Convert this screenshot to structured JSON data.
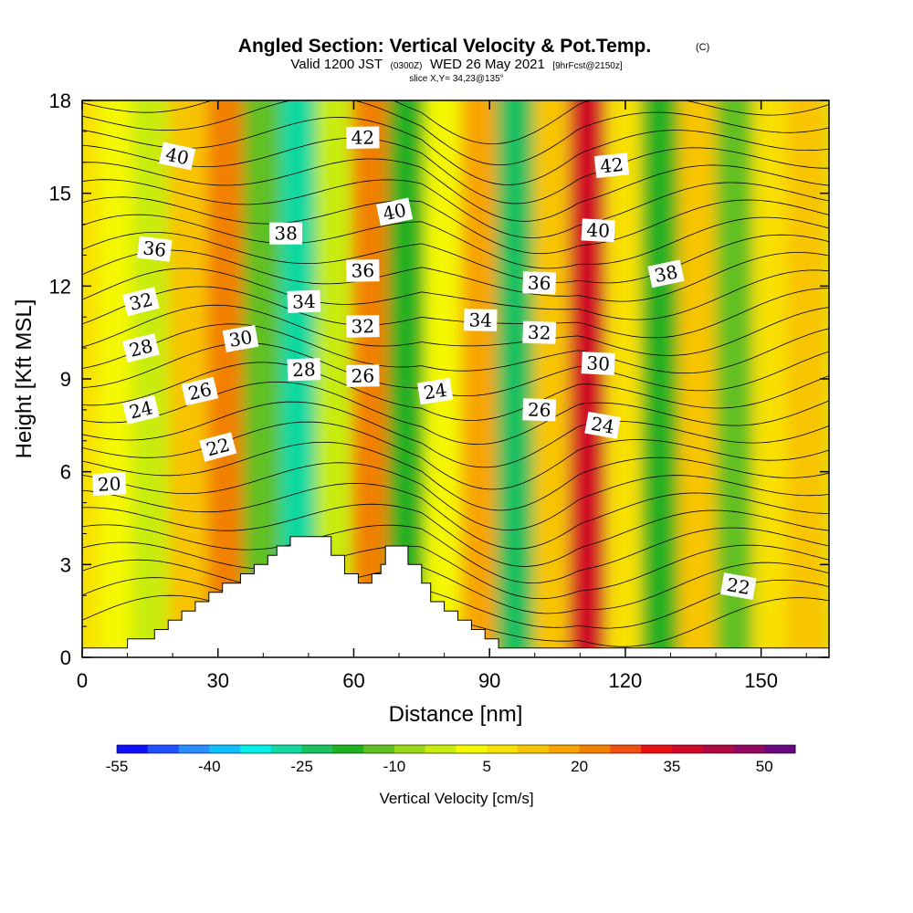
{
  "header": {
    "title": "Angled Section: Vertical Velocity & Pot.Temp.",
    "title_units": "(C)",
    "valid_a": "Valid 1200 JST",
    "valid_b": "(0300Z)",
    "valid_c": "WED 26 May 2021",
    "valid_d": "[9hrFcst@2150z]",
    "slice": "slice X,Y= 34,23@135°"
  },
  "colorbar": {
    "label": "Vertical Velocity [cm/s]",
    "tick_labels": [
      "-55",
      "-40",
      "-25",
      "-10",
      "5",
      "20",
      "35",
      "50"
    ],
    "colors": [
      "#1010ff",
      "#2050ff",
      "#2a8cff",
      "#10c0ff",
      "#00eee6",
      "#10d8a0",
      "#18c060",
      "#20b020",
      "#60c020",
      "#98d818",
      "#c8ec10",
      "#f4f800",
      "#f8e000",
      "#f8c400",
      "#f8a400",
      "#f28000",
      "#f05010",
      "#ea1010",
      "#d00828",
      "#b00840",
      "#900860",
      "#6a0880"
    ]
  },
  "chart_data": {
    "type": "heatmap",
    "title": "Angled Section: Vertical Velocity & Pot.Temp.",
    "xlabel": "Distance [nm]",
    "ylabel": "Height [Kft MSL]",
    "xlim": [
      0,
      165
    ],
    "ylim": [
      0,
      18
    ],
    "x_ticks": [
      "0",
      "30",
      "60",
      "90",
      "120",
      "150"
    ],
    "y_ticks": [
      "0",
      "3",
      "6",
      "9",
      "12",
      "15",
      "18"
    ],
    "shaded_field": "Vertical Velocity [cm/s]",
    "shading_range": [
      -55,
      60
    ],
    "shading_interval": 5,
    "vertical_velocity_columns": [
      {
        "x": 0,
        "w": 5
      },
      {
        "x": 8,
        "w": 0
      },
      {
        "x": 15,
        "w": -5
      },
      {
        "x": 24,
        "w": 10
      },
      {
        "x": 32,
        "w": 20
      },
      {
        "x": 40,
        "w": -15
      },
      {
        "x": 48,
        "w": -30
      },
      {
        "x": 56,
        "w": -5
      },
      {
        "x": 64,
        "w": 20
      },
      {
        "x": 72,
        "w": -20
      },
      {
        "x": 80,
        "w": 0
      },
      {
        "x": 88,
        "w": 15
      },
      {
        "x": 96,
        "w": -25
      },
      {
        "x": 104,
        "w": 10
      },
      {
        "x": 112,
        "w": 35
      },
      {
        "x": 120,
        "w": 5
      },
      {
        "x": 128,
        "w": -20
      },
      {
        "x": 136,
        "w": 10
      },
      {
        "x": 145,
        "w": -15
      },
      {
        "x": 152,
        "w": 5
      },
      {
        "x": 160,
        "w": 10
      }
    ],
    "contour_field": "Pot.Temp. (C)",
    "contour_labels": [
      {
        "value": "20",
        "x": 6,
        "y": 5.6
      },
      {
        "value": "22",
        "x": 30,
        "y": 6.8
      },
      {
        "value": "22",
        "x": 145,
        "y": 2.3
      },
      {
        "value": "24",
        "x": 13,
        "y": 8.0
      },
      {
        "value": "24",
        "x": 78,
        "y": 8.6
      },
      {
        "value": "24",
        "x": 115,
        "y": 7.5
      },
      {
        "value": "26",
        "x": 26,
        "y": 8.6
      },
      {
        "value": "26",
        "x": 62,
        "y": 9.1
      },
      {
        "value": "26",
        "x": 101,
        "y": 8.0
      },
      {
        "value": "28",
        "x": 13,
        "y": 10.0
      },
      {
        "value": "28",
        "x": 49,
        "y": 9.3
      },
      {
        "value": "30",
        "x": 35,
        "y": 10.3
      },
      {
        "value": "30",
        "x": 114,
        "y": 9.5
      },
      {
        "value": "32",
        "x": 13,
        "y": 11.5
      },
      {
        "value": "32",
        "x": 62,
        "y": 10.7
      },
      {
        "value": "32",
        "x": 101,
        "y": 10.5
      },
      {
        "value": "34",
        "x": 49,
        "y": 11.5
      },
      {
        "value": "34",
        "x": 88,
        "y": 10.9
      },
      {
        "value": "36",
        "x": 16,
        "y": 13.2
      },
      {
        "value": "36",
        "x": 62,
        "y": 12.5
      },
      {
        "value": "36",
        "x": 101,
        "y": 12.1
      },
      {
        "value": "38",
        "x": 45,
        "y": 13.7
      },
      {
        "value": "38",
        "x": 129,
        "y": 12.4
      },
      {
        "value": "40",
        "x": 21,
        "y": 16.2
      },
      {
        "value": "40",
        "x": 69,
        "y": 14.4
      },
      {
        "value": "40",
        "x": 114,
        "y": 13.8
      },
      {
        "value": "42",
        "x": 62,
        "y": 16.8
      },
      {
        "value": "42",
        "x": 117,
        "y": 15.9
      }
    ],
    "terrain_profile": [
      [
        0,
        0.3
      ],
      [
        10,
        0.3
      ],
      [
        10,
        0.6
      ],
      [
        16,
        0.6
      ],
      [
        16,
        0.9
      ],
      [
        19,
        0.9
      ],
      [
        19,
        1.2
      ],
      [
        22,
        1.2
      ],
      [
        22,
        1.5
      ],
      [
        25,
        1.5
      ],
      [
        25,
        1.8
      ],
      [
        28,
        1.8
      ],
      [
        28,
        2.1
      ],
      [
        31,
        2.1
      ],
      [
        31,
        2.4
      ],
      [
        35,
        2.4
      ],
      [
        35,
        2.7
      ],
      [
        38,
        2.7
      ],
      [
        38,
        3.0
      ],
      [
        41,
        3.0
      ],
      [
        41,
        3.3
      ],
      [
        43,
        3.3
      ],
      [
        43,
        3.6
      ],
      [
        46,
        3.6
      ],
      [
        46,
        3.9
      ],
      [
        55,
        3.9
      ],
      [
        55,
        3.3
      ],
      [
        58,
        3.3
      ],
      [
        58,
        2.7
      ],
      [
        61,
        2.7
      ],
      [
        61,
        2.4
      ],
      [
        64,
        2.4
      ],
      [
        64,
        2.7
      ],
      [
        66,
        2.7
      ],
      [
        66,
        3.0
      ],
      [
        67,
        3.0
      ],
      [
        67,
        3.6
      ],
      [
        72,
        3.6
      ],
      [
        72,
        3.0
      ],
      [
        75,
        3.0
      ],
      [
        75,
        2.4
      ],
      [
        77,
        2.4
      ],
      [
        77,
        1.8
      ],
      [
        80,
        1.8
      ],
      [
        80,
        1.5
      ],
      [
        83,
        1.5
      ],
      [
        83,
        1.2
      ],
      [
        86,
        1.2
      ],
      [
        86,
        0.9
      ],
      [
        89,
        0.9
      ],
      [
        89,
        0.6
      ],
      [
        92,
        0.6
      ],
      [
        92,
        0.3
      ],
      [
        165,
        0.3
      ]
    ]
  }
}
